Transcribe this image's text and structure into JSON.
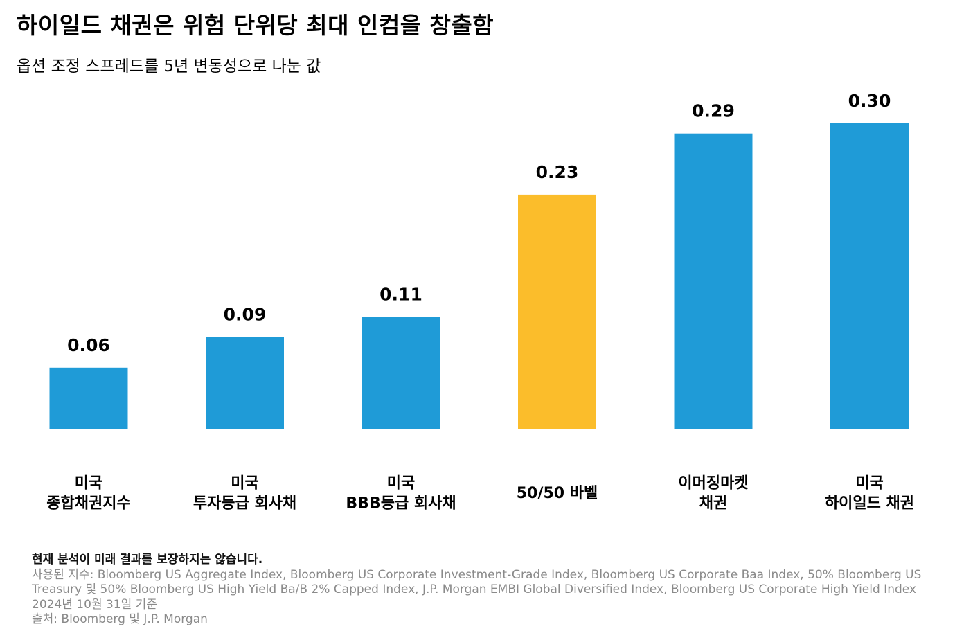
{
  "header": {
    "title": "하이일드 채권은 위험 단위당 최대 인컴을 창출함",
    "subtitle": "옵션 조정 스프레드를 5년 변동성으로 나눈 값"
  },
  "colors": {
    "blue": "#1f9bd7",
    "yellow": "#fbbd2b"
  },
  "chart_data": {
    "type": "bar",
    "categories": [
      [
        "미국",
        "종합채권지수"
      ],
      [
        "미국",
        "투자등급 회사채"
      ],
      [
        "미국",
        "BBB등급 회사채"
      ],
      [
        "50/50 바벨"
      ],
      [
        "이머징마켓",
        "채권"
      ],
      [
        "미국",
        "하이일드 채권"
      ]
    ],
    "values": [
      0.06,
      0.09,
      0.11,
      0.23,
      0.29,
      0.3
    ],
    "value_labels": [
      "0.06",
      "0.09",
      "0.11",
      "0.23",
      "0.29",
      "0.30"
    ],
    "bar_colors": [
      "#1f9bd7",
      "#1f9bd7",
      "#1f9bd7",
      "#fbbd2b",
      "#1f9bd7",
      "#1f9bd7"
    ],
    "ylim": [
      0,
      0.3
    ],
    "grid": false,
    "legend": "none"
  },
  "footer": {
    "note": "현재 분석이 미래 결과를 보장하지는 않습니다.",
    "lines": [
      "사용된 지수: Bloomberg US Aggregate Index, Bloomberg US Corporate Investment-Grade Index, Bloomberg US Corporate Baa Index, 50% Bloomberg US Treasury 및 50% Bloomberg US High Yield Ba/B 2% Capped Index, J.P. Morgan EMBI Global Diversified Index, Bloomberg US Corporate High Yield Index",
      "2024년 10월 31일 기준",
      "출처: Bloomberg 및 J.P. Morgan"
    ]
  }
}
